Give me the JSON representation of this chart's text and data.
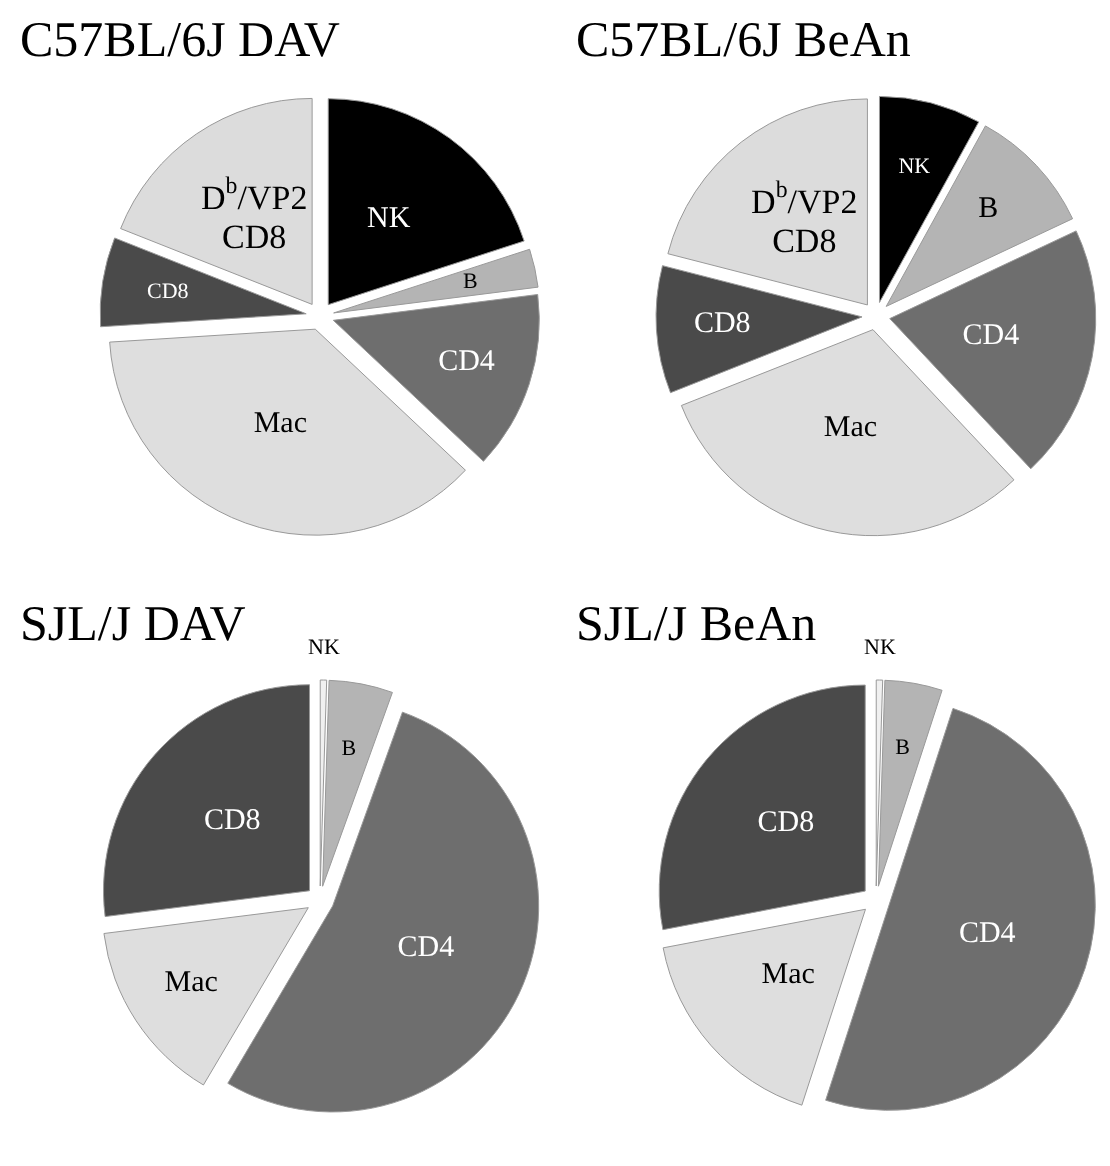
{
  "chart_data": [
    {
      "type": "pie",
      "title": "C57BL/6J DAV",
      "categories": [
        "NK",
        "B",
        "CD4",
        "Mac",
        "CD8",
        "D$^{b}$/VP2 CD8"
      ],
      "values": [
        20,
        3,
        14,
        37,
        7,
        19
      ],
      "colors": [
        "#000000",
        "#b4b4b4",
        "#6e6e6e",
        "#dedede",
        "#4a4a4a",
        "#dcdcdc"
      ]
    },
    {
      "type": "pie",
      "title": "C57BL/6J BeAn",
      "categories": [
        "NK",
        "B",
        "CD4",
        "Mac",
        "CD8",
        "D$^{b}$/VP2 CD8"
      ],
      "values": [
        8,
        10,
        20,
        31,
        10,
        21
      ],
      "colors": [
        "#000000",
        "#b4b4b4",
        "#6e6e6e",
        "#dedede",
        "#4a4a4a",
        "#dcdcdc"
      ]
    },
    {
      "type": "pie",
      "title": "SJL/J DAV",
      "categories": [
        "NK",
        "B",
        "CD4",
        "Mac",
        "CD8"
      ],
      "values": [
        0.5,
        5,
        53,
        14.5,
        27
      ],
      "colors": [
        "#f0f0f0",
        "#b4b4b4",
        "#6e6e6e",
        "#dedede",
        "#4a4a4a"
      ]
    },
    {
      "type": "pie",
      "title": "SJL/J BeAn",
      "categories": [
        "NK",
        "B",
        "CD4",
        "Mac",
        "CD8"
      ],
      "values": [
        0.5,
        4.5,
        50,
        17,
        28
      ],
      "colors": [
        "#f0f0f0",
        "#b4b4b4",
        "#6e6e6e",
        "#dedede",
        "#4a4a4a"
      ]
    }
  ]
}
